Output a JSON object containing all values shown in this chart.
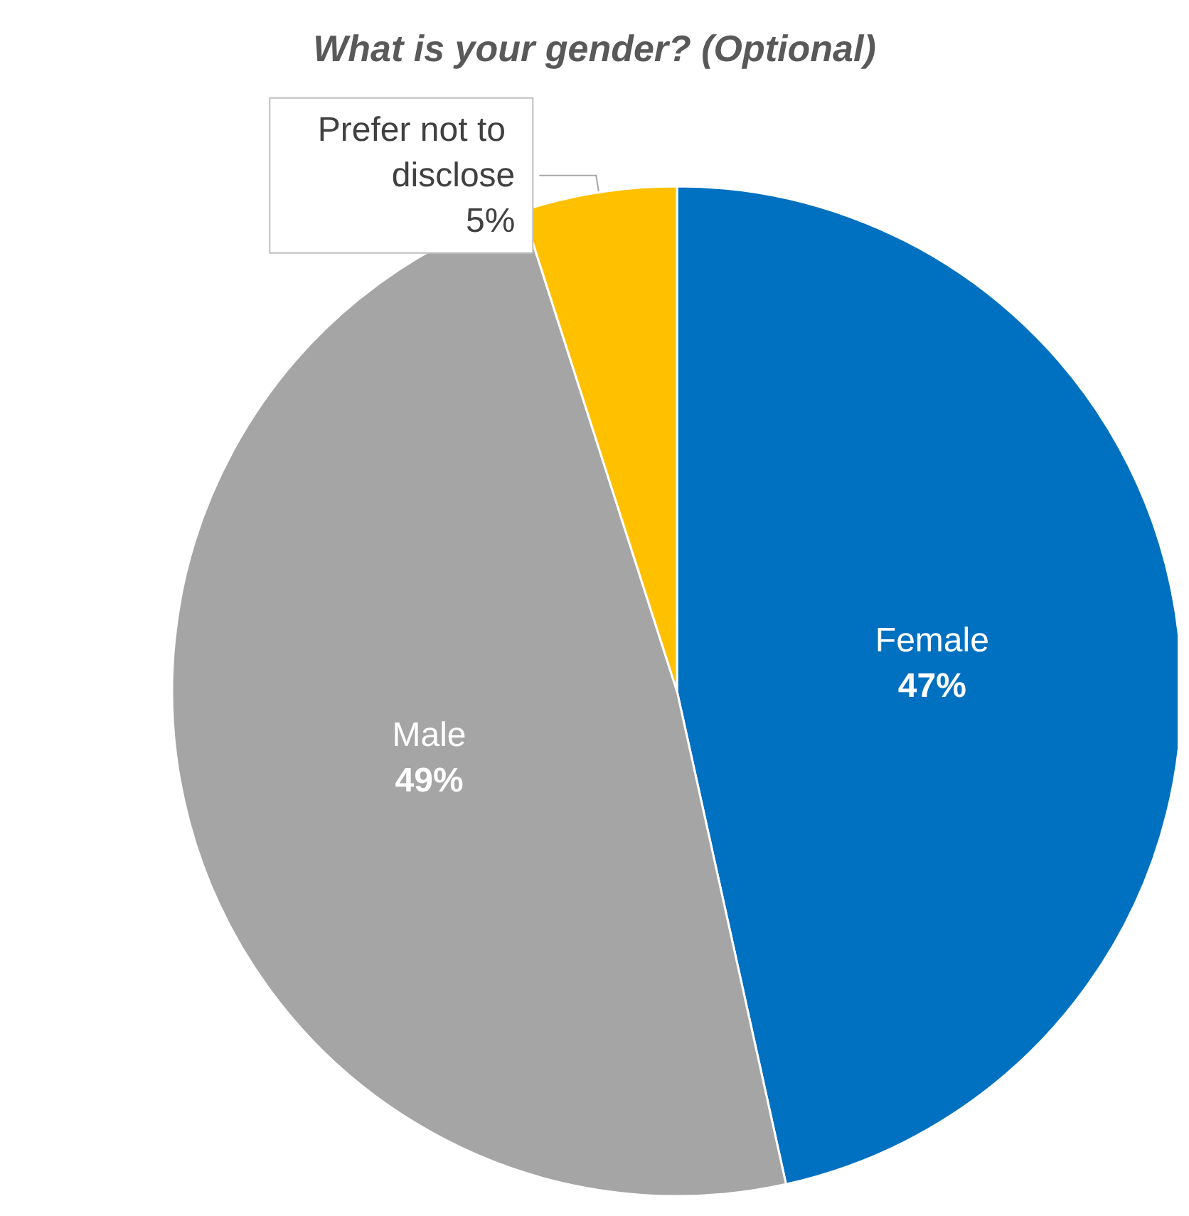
{
  "chart_data": {
    "type": "pie",
    "title": "What is your gender? (Optional)",
    "categories": [
      "Female",
      "Male",
      "Prefer not to disclose"
    ],
    "values": [
      47,
      49,
      5
    ],
    "colors": [
      "#0070c0",
      "#a5a5a5",
      "#ffc000"
    ],
    "value_labels": [
      "47%",
      "49%",
      "5%"
    ],
    "legend": false
  }
}
